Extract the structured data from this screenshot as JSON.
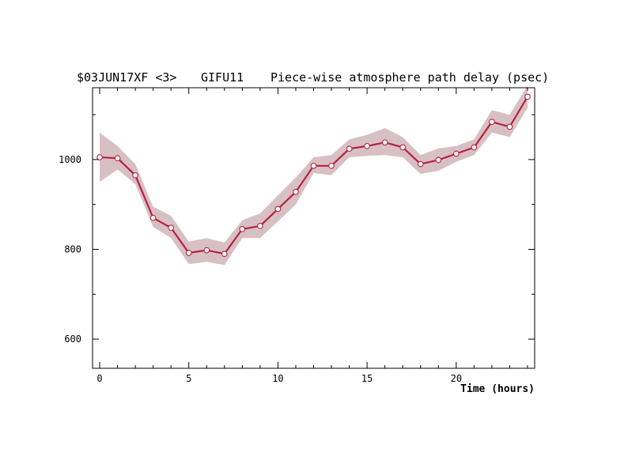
{
  "chart_data": {
    "type": "line",
    "title_parts": [
      "$03JUN17XF <3>",
      "GIFU11",
      "Piece-wise atmosphere path delay (psec)"
    ],
    "xlabel": "Time (hours)",
    "ylabel": "",
    "xlim": [
      -0.4,
      24.4
    ],
    "ylim": [
      535,
      1160
    ],
    "xticks": [
      0,
      5,
      10,
      15,
      20
    ],
    "xtick_labels": [
      "0",
      "5",
      "10",
      "15",
      "20"
    ],
    "yticks": [
      600,
      800,
      1000
    ],
    "ytick_labels": [
      "600",
      "800",
      "1000"
    ],
    "grid": false,
    "colors": {
      "line": "#b8213e",
      "band": "#d7c0c4",
      "marker_fill": "#ffffff"
    },
    "series": [
      {
        "x": [
          0,
          1,
          2,
          3,
          4,
          5,
          6,
          7,
          8,
          9,
          10,
          11,
          12,
          13,
          14,
          15,
          16,
          17,
          18,
          19,
          20,
          21,
          22,
          23,
          24
        ],
        "values": [
          1005,
          1003,
          965,
          870,
          848,
          792,
          798,
          790,
          845,
          852,
          890,
          928,
          986,
          986,
          1024,
          1030,
          1038,
          1027,
          990,
          999,
          1013,
          1027,
          1084,
          1073,
          1140
        ],
        "upper": [
          1060,
          1030,
          990,
          895,
          875,
          817,
          825,
          815,
          865,
          880,
          920,
          960,
          1005,
          1010,
          1045,
          1055,
          1070,
          1050,
          1010,
          1025,
          1030,
          1045,
          1110,
          1100,
          1165
        ],
        "lower": [
          950,
          978,
          945,
          850,
          825,
          767,
          772,
          765,
          825,
          825,
          862,
          900,
          970,
          965,
          1005,
          1008,
          1010,
          1005,
          968,
          975,
          995,
          1010,
          1060,
          1050,
          1115
        ]
      }
    ]
  }
}
